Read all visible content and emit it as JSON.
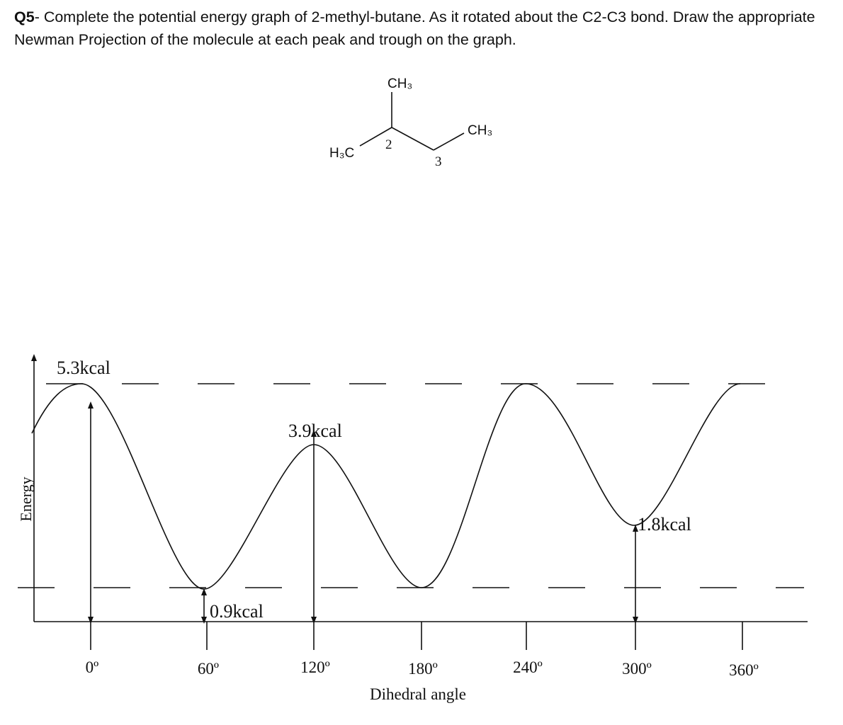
{
  "question": {
    "number": "Q5",
    "text": "- Complete the potential energy graph of 2-methyl-butane. As it rotated about the C2-C3 bond. Draw the appropriate Newman Projection of the molecule at each peak and trough on the graph."
  },
  "molecule": {
    "top_group": "CH₃",
    "right_group": "CH₃",
    "left_group": "H₃C",
    "carbon_2": "2",
    "carbon_3": "3"
  },
  "graph": {
    "y_axis_title": "Energy",
    "x_axis_title": "Dihedral angle",
    "energy_labels": [
      "5.3kcal",
      "3.9kcal",
      "0.9kcal",
      "1.8kcal"
    ],
    "x_labels": [
      "0º",
      "60º",
      "120º",
      "180º",
      "240º",
      "300º",
      "360º"
    ]
  }
}
